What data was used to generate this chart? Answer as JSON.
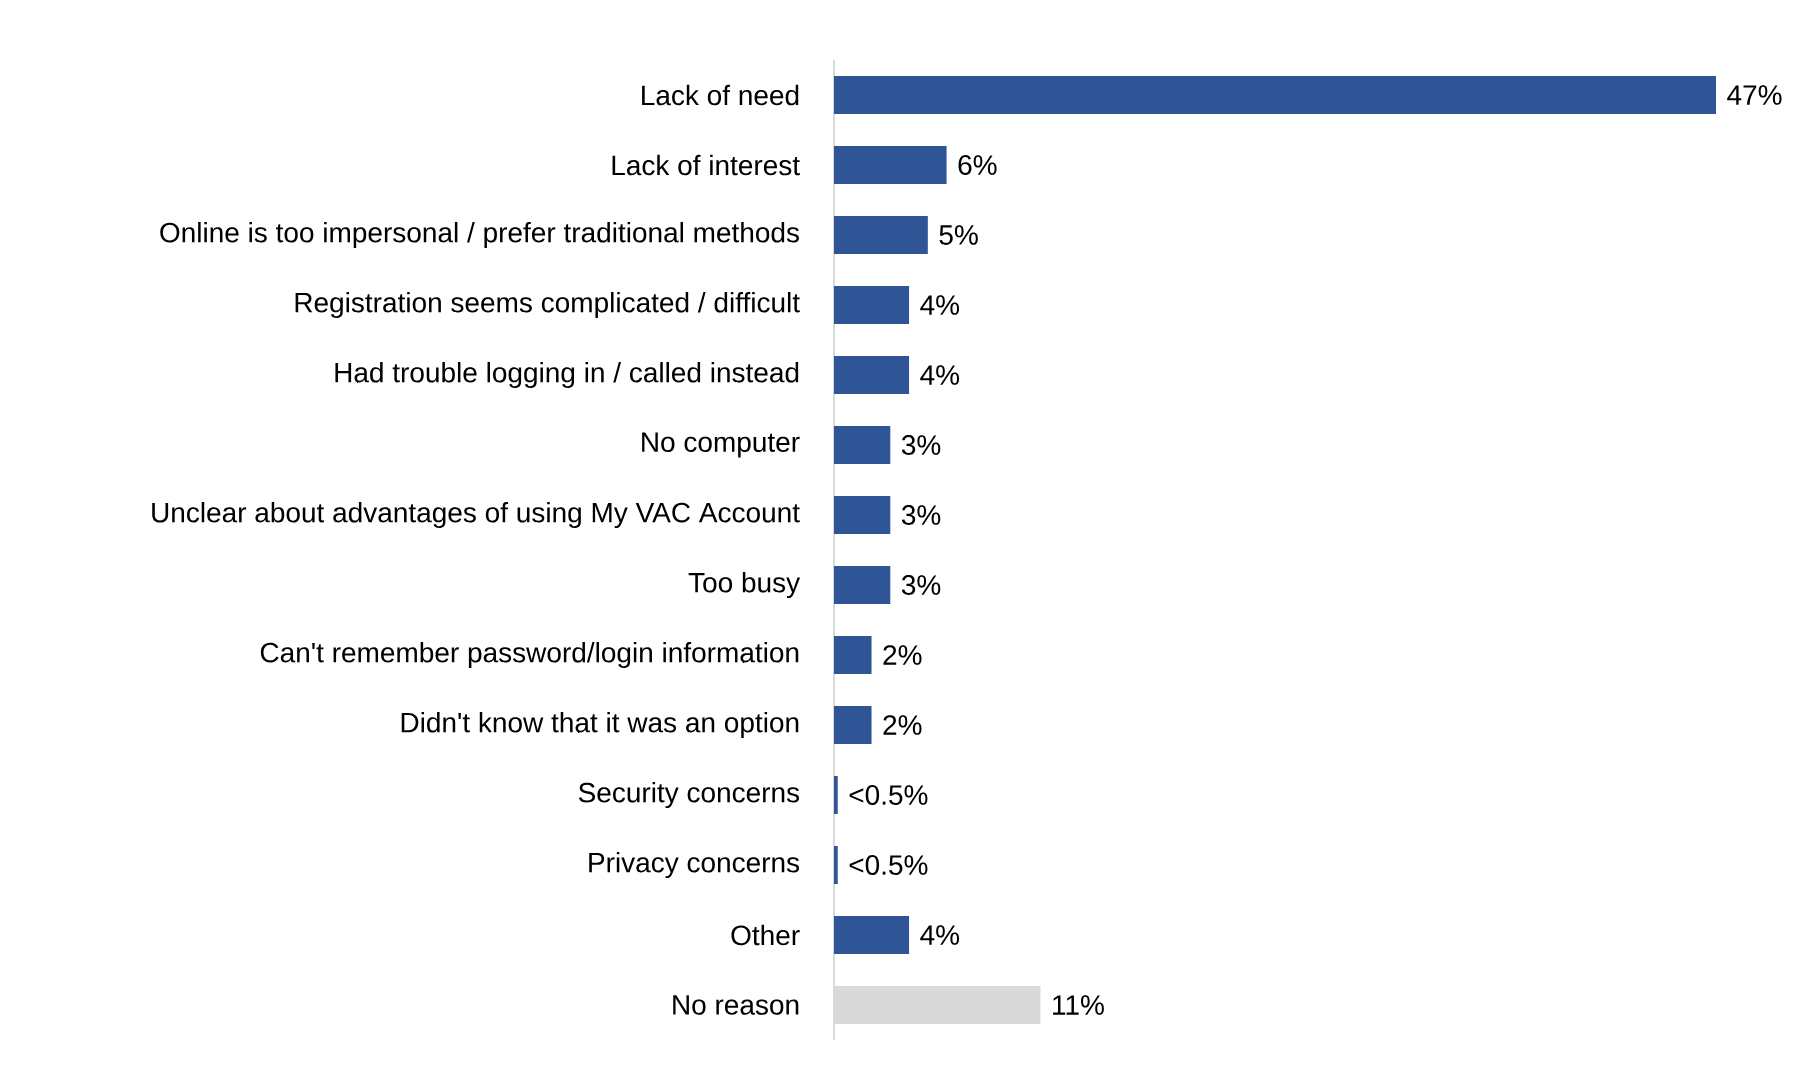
{
  "chart_data": {
    "type": "bar",
    "orientation": "horizontal",
    "categories": [
      "Lack of need",
      "Lack of interest",
      "Online is too impersonal / prefer traditional methods",
      "Registration seems complicated / difficult",
      "Had trouble logging in / called instead",
      "No computer",
      "Unclear about advantages of using My VAC Account",
      "Too busy",
      "Can't remember password/login information",
      "Didn't know that it was an option",
      "Security concerns",
      "Privacy concerns",
      "Other",
      "No reason"
    ],
    "values": [
      47,
      6,
      5,
      4,
      4,
      3,
      3,
      3,
      2,
      2,
      0.2,
      0.2,
      4,
      11
    ],
    "value_labels": [
      "47%",
      "6%",
      "5%",
      "4%",
      "4%",
      "3%",
      "3%",
      "3%",
      "2%",
      "2%",
      "<0.5%",
      "<0.5%",
      "4%",
      "11%"
    ],
    "colors": [
      "#2f5597",
      "#2f5597",
      "#2f5597",
      "#2f5597",
      "#2f5597",
      "#2f5597",
      "#2f5597",
      "#2f5597",
      "#2f5597",
      "#2f5597",
      "#2f5597",
      "#2f5597",
      "#2f5597",
      "#d9d9d9"
    ],
    "tick_labels": "y"
  }
}
